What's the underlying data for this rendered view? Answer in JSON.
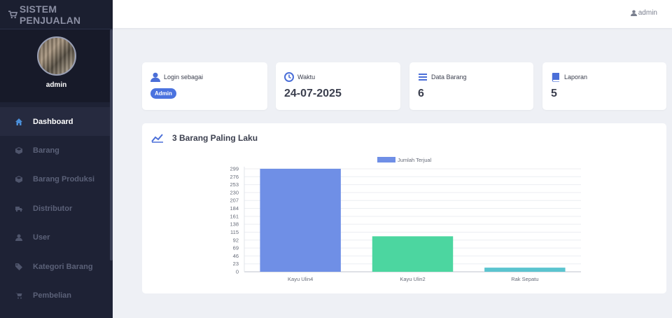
{
  "brand": {
    "title": "SISTEM PENJUALAN"
  },
  "profile": {
    "name": "admin"
  },
  "sidebar": {
    "items": [
      {
        "label": "Dashboard",
        "icon": "home-icon",
        "active": true
      },
      {
        "label": "Barang",
        "icon": "box-icon"
      },
      {
        "label": "Barang Produksi",
        "icon": "box-icon"
      },
      {
        "label": "Distributor",
        "icon": "truck-icon"
      },
      {
        "label": "User",
        "icon": "user-icon"
      },
      {
        "label": "Kategori Barang",
        "icon": "tags-icon"
      },
      {
        "label": "Pembelian",
        "icon": "cart-icon"
      }
    ]
  },
  "topbar": {
    "user": "admin"
  },
  "cards": {
    "login": {
      "label": "Login sebagai",
      "badge": "Admin"
    },
    "time": {
      "label": "Waktu",
      "value": "24-07-2025"
    },
    "items": {
      "label": "Data Barang",
      "value": "6"
    },
    "reports": {
      "label": "Laporan",
      "value": "5"
    }
  },
  "chart": {
    "title": "3 Barang Paling Laku"
  },
  "chart_data": {
    "type": "bar",
    "categories": [
      "Kayu Ulin4",
      "Kayu Ulin2",
      "Rak Sepatu"
    ],
    "series": [
      {
        "name": "Jumlah Terjual",
        "values": [
          299,
          103,
          12
        ],
        "colors": [
          "#6f8fe6",
          "#4cd6a0",
          "#5bc4cf"
        ]
      }
    ],
    "yticks": [
      0,
      23,
      46,
      69,
      92,
      115,
      138,
      161,
      184,
      207,
      230,
      253,
      276,
      299
    ],
    "ylim": [
      0,
      305
    ],
    "legend": "top",
    "grid": true
  }
}
